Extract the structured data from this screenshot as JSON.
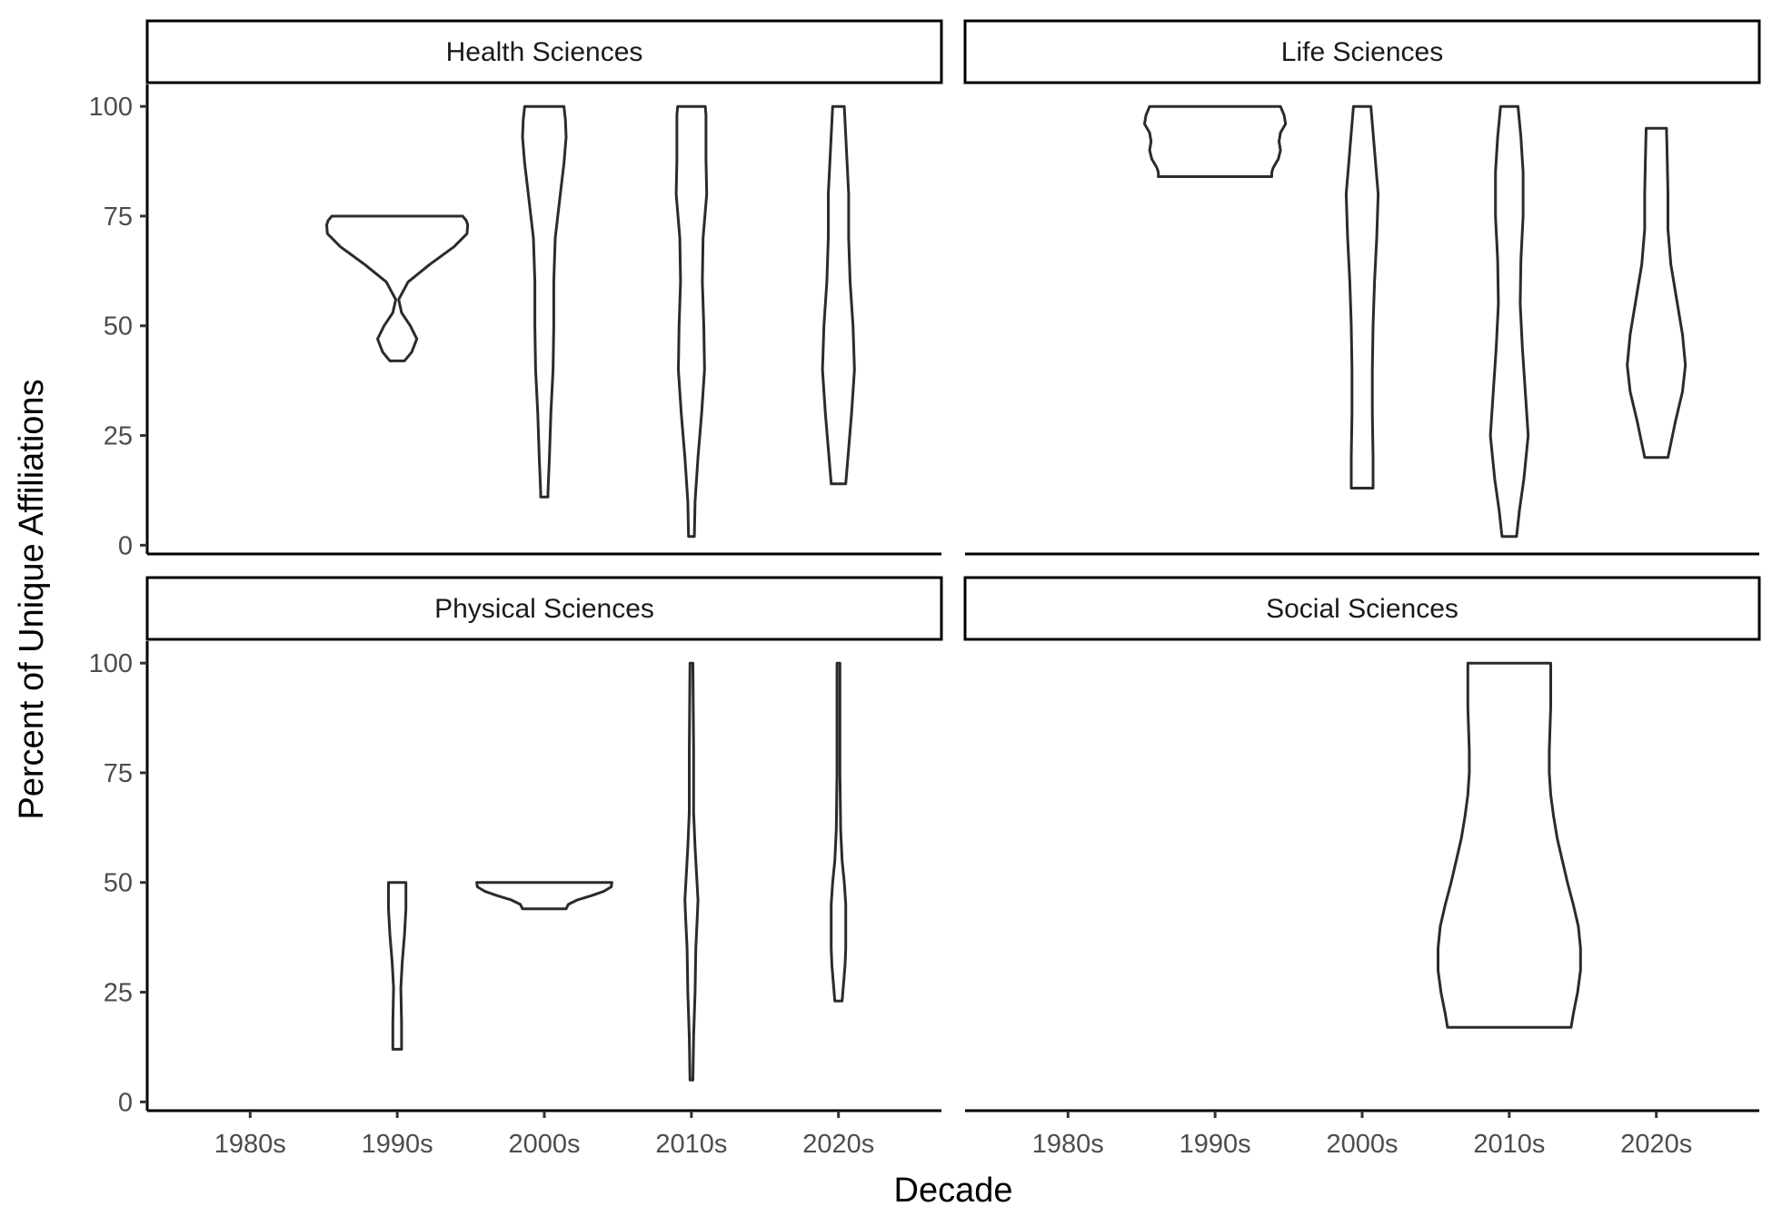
{
  "chart_data": {
    "type": "violin",
    "xlabel": "Decade",
    "ylabel": "Percent of Unique Affiliations",
    "categories": [
      "1980s",
      "1990s",
      "2000s",
      "2010s",
      "2020s"
    ],
    "ylim": [
      -2,
      105
    ],
    "yticks": [
      0,
      25,
      50,
      75,
      100
    ],
    "grid": false,
    "legend": "none",
    "colors": {
      "outline": "#2b2b2b",
      "fill": "#ffffff",
      "strip_border": "#000000"
    },
    "panels": [
      {
        "title": "Health Sciences",
        "violins": [
          {
            "category": "1990s",
            "profile": [
              [
                42,
                0.1
              ],
              [
                44,
                0.2
              ],
              [
                47,
                0.27
              ],
              [
                50,
                0.18
              ],
              [
                53,
                0.06
              ],
              [
                56,
                0.02
              ],
              [
                60,
                0.15
              ],
              [
                64,
                0.45
              ],
              [
                68,
                0.78
              ],
              [
                71,
                0.96
              ],
              [
                73,
                0.97
              ],
              [
                74,
                0.95
              ],
              [
                75,
                0.9
              ]
            ]
          },
          {
            "category": "2000s",
            "profile": [
              [
                11,
                0.05
              ],
              [
                12,
                0.05
              ],
              [
                20,
                0.07
              ],
              [
                30,
                0.09
              ],
              [
                40,
                0.12
              ],
              [
                50,
                0.13
              ],
              [
                60,
                0.13
              ],
              [
                70,
                0.15
              ],
              [
                80,
                0.22
              ],
              [
                87,
                0.27
              ],
              [
                93,
                0.3
              ],
              [
                97,
                0.29
              ],
              [
                100,
                0.27
              ]
            ]
          },
          {
            "category": "2010s",
            "profile": [
              [
                2,
                0.04
              ],
              [
                10,
                0.05
              ],
              [
                20,
                0.09
              ],
              [
                30,
                0.14
              ],
              [
                40,
                0.18
              ],
              [
                50,
                0.17
              ],
              [
                60,
                0.15
              ],
              [
                70,
                0.16
              ],
              [
                80,
                0.21
              ],
              [
                88,
                0.2
              ],
              [
                94,
                0.2
              ],
              [
                98,
                0.2
              ],
              [
                100,
                0.19
              ]
            ]
          },
          {
            "category": "2020s",
            "profile": [
              [
                14,
                0.1
              ],
              [
                20,
                0.13
              ],
              [
                30,
                0.18
              ],
              [
                40,
                0.22
              ],
              [
                50,
                0.2
              ],
              [
                60,
                0.16
              ],
              [
                70,
                0.14
              ],
              [
                80,
                0.14
              ],
              [
                90,
                0.11
              ],
              [
                100,
                0.08
              ]
            ]
          }
        ]
      },
      {
        "title": "Life Sciences",
        "violins": [
          {
            "category": "1990s",
            "profile": [
              [
                84,
                0.78
              ],
              [
                85,
                0.78
              ],
              [
                86,
                0.8
              ],
              [
                88,
                0.87
              ],
              [
                90,
                0.9
              ],
              [
                92,
                0.88
              ],
              [
                94,
                0.9
              ],
              [
                96,
                0.97
              ],
              [
                98,
                0.95
              ],
              [
                100,
                0.9
              ]
            ]
          },
          {
            "category": "2000s",
            "profile": [
              [
                13,
                0.15
              ],
              [
                20,
                0.15
              ],
              [
                30,
                0.14
              ],
              [
                40,
                0.14
              ],
              [
                50,
                0.15
              ],
              [
                60,
                0.17
              ],
              [
                70,
                0.2
              ],
              [
                80,
                0.22
              ],
              [
                90,
                0.17
              ],
              [
                100,
                0.12
              ]
            ]
          },
          {
            "category": "2010s",
            "profile": [
              [
                2,
                0.1
              ],
              [
                8,
                0.14
              ],
              [
                15,
                0.2
              ],
              [
                25,
                0.26
              ],
              [
                35,
                0.22
              ],
              [
                45,
                0.18
              ],
              [
                55,
                0.15
              ],
              [
                65,
                0.16
              ],
              [
                75,
                0.19
              ],
              [
                85,
                0.19
              ],
              [
                93,
                0.16
              ],
              [
                100,
                0.12
              ]
            ]
          },
          {
            "category": "2020s",
            "profile": [
              [
                20,
                0.16
              ],
              [
                28,
                0.26
              ],
              [
                35,
                0.36
              ],
              [
                41,
                0.4
              ],
              [
                48,
                0.36
              ],
              [
                56,
                0.28
              ],
              [
                64,
                0.2
              ],
              [
                72,
                0.16
              ],
              [
                80,
                0.16
              ],
              [
                88,
                0.15
              ],
              [
                95,
                0.14
              ]
            ]
          }
        ]
      },
      {
        "title": "Physical Sciences",
        "violins": [
          {
            "category": "1990s",
            "profile": [
              [
                12,
                0.06
              ],
              [
                18,
                0.06
              ],
              [
                26,
                0.05
              ],
              [
                32,
                0.07
              ],
              [
                38,
                0.1
              ],
              [
                44,
                0.12
              ],
              [
                50,
                0.12
              ]
            ]
          },
          {
            "category": "2000s",
            "profile": [
              [
                44,
                0.3
              ],
              [
                45,
                0.33
              ],
              [
                46,
                0.45
              ],
              [
                47,
                0.65
              ],
              [
                48,
                0.82
              ],
              [
                49,
                0.92
              ],
              [
                50,
                0.93
              ]
            ]
          },
          {
            "category": "2010s",
            "profile": [
              [
                5,
                0.02
              ],
              [
                15,
                0.03
              ],
              [
                25,
                0.05
              ],
              [
                35,
                0.06
              ],
              [
                42,
                0.08
              ],
              [
                46,
                0.09
              ],
              [
                52,
                0.07
              ],
              [
                58,
                0.05
              ],
              [
                66,
                0.03
              ],
              [
                80,
                0.03
              ],
              [
                100,
                0.02
              ]
            ]
          },
          {
            "category": "2020s",
            "profile": [
              [
                23,
                0.05
              ],
              [
                27,
                0.07
              ],
              [
                31,
                0.09
              ],
              [
                35,
                0.1
              ],
              [
                40,
                0.1
              ],
              [
                45,
                0.1
              ],
              [
                50,
                0.08
              ],
              [
                55,
                0.05
              ],
              [
                62,
                0.03
              ],
              [
                75,
                0.02
              ],
              [
                100,
                0.02
              ]
            ]
          }
        ]
      },
      {
        "title": "Social Sciences",
        "violins": [
          {
            "category": "2010s",
            "profile": [
              [
                17,
                0.85
              ],
              [
                20,
                0.88
              ],
              [
                25,
                0.94
              ],
              [
                30,
                0.98
              ],
              [
                35,
                0.98
              ],
              [
                40,
                0.95
              ],
              [
                45,
                0.88
              ],
              [
                50,
                0.8
              ],
              [
                55,
                0.73
              ],
              [
                60,
                0.66
              ],
              [
                65,
                0.61
              ],
              [
                70,
                0.57
              ],
              [
                75,
                0.55
              ],
              [
                80,
                0.55
              ],
              [
                85,
                0.56
              ],
              [
                90,
                0.57
              ],
              [
                95,
                0.57
              ],
              [
                100,
                0.57
              ]
            ]
          }
        ]
      }
    ]
  }
}
